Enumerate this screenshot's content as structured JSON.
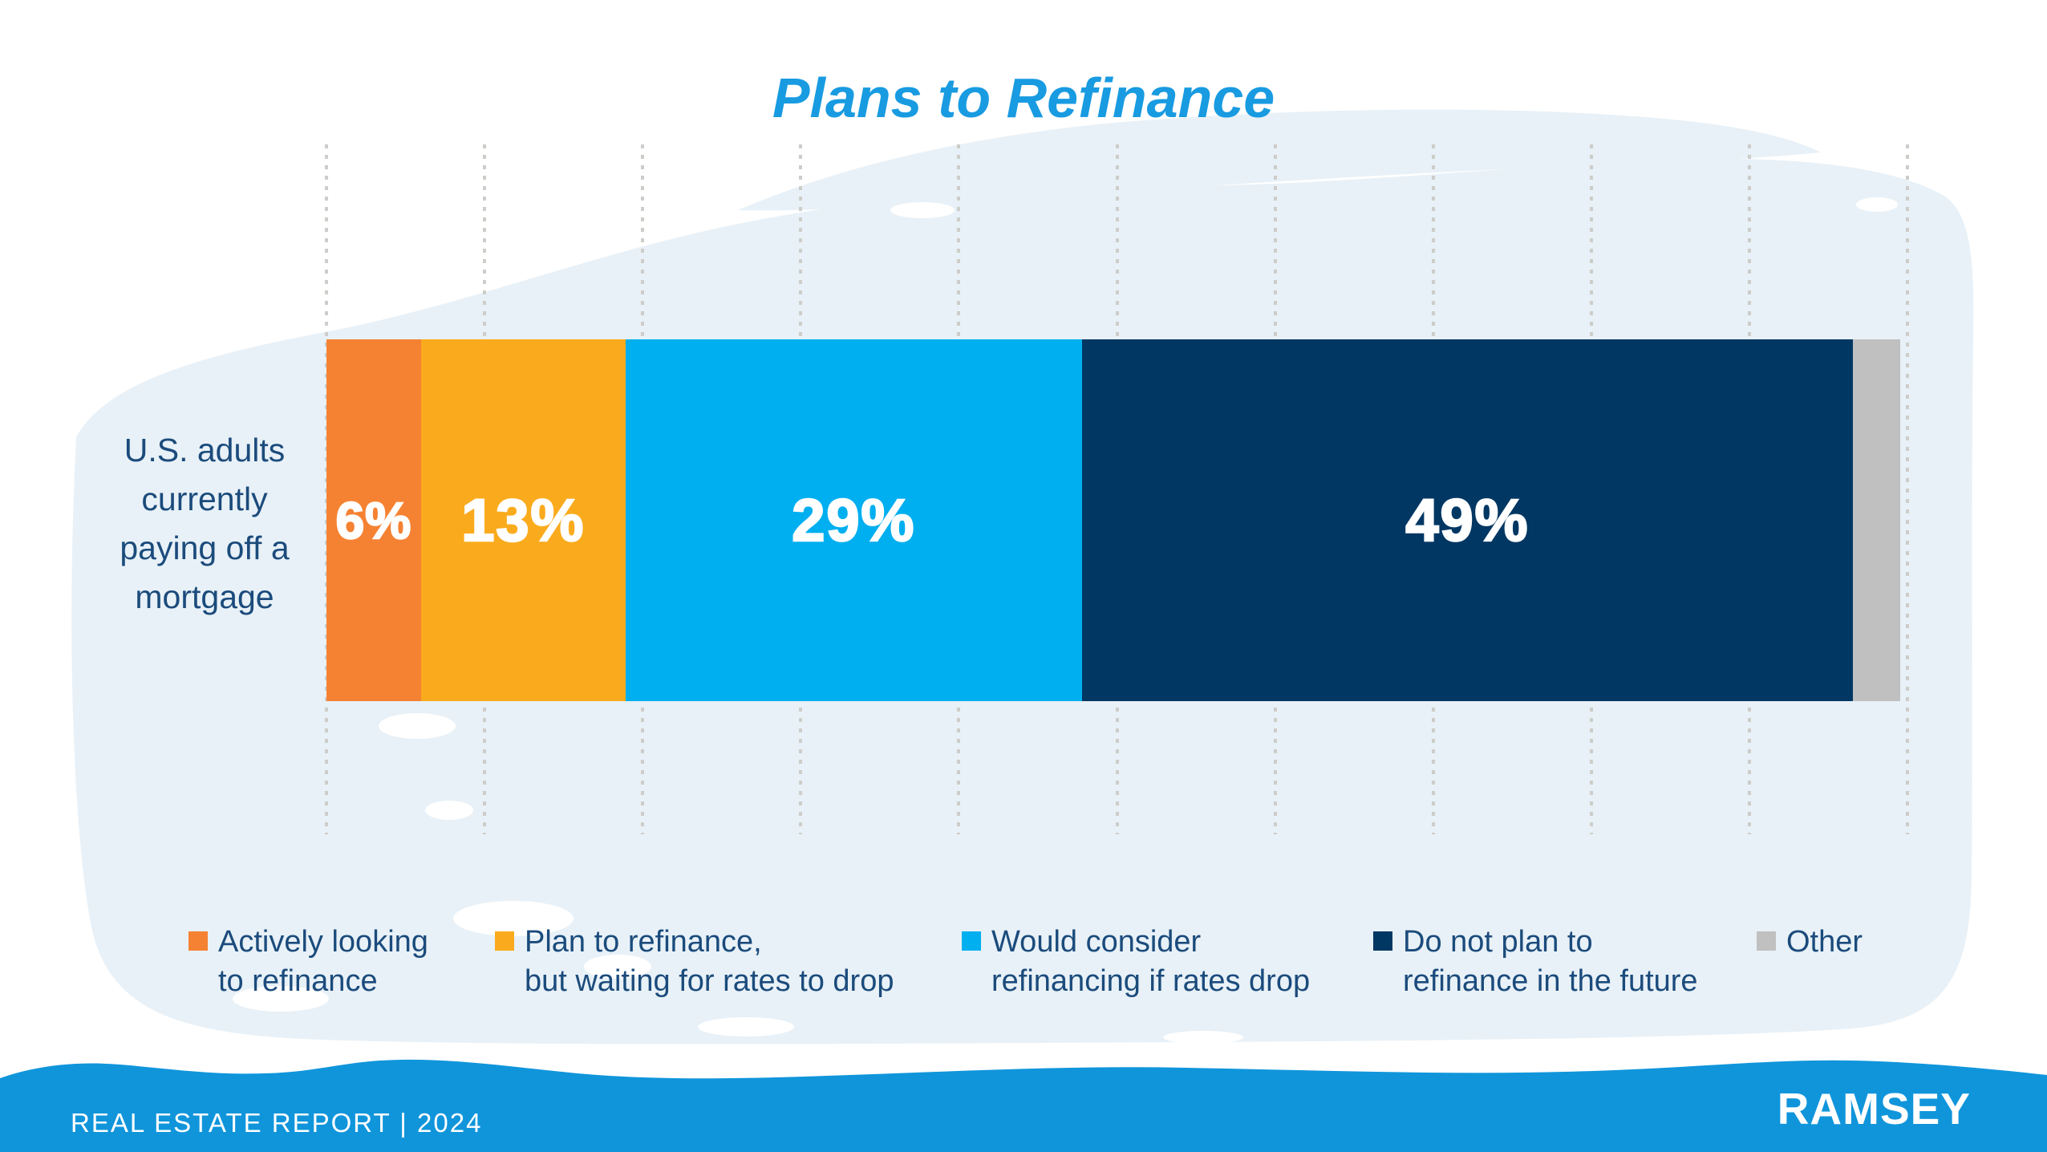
{
  "title": "Plans to Refinance",
  "chart_data": {
    "type": "bar",
    "variant": "horizontal-stacked-100pct",
    "title": "Plans to Refinance",
    "categories": [
      "U.S. adults currently paying off a mortgage"
    ],
    "category_label_lines": "U.S. adults\ncurrently\npaying off a\nmortgage",
    "series": [
      {
        "name": "Actively looking to refinance",
        "legend_label": "Actively looking\nto refinance",
        "value": 6,
        "data_label": "6%",
        "color": "#F58232"
      },
      {
        "name": "Plan to refinance, but waiting for rates to drop",
        "legend_label": "Plan to refinance,\nbut waiting for rates to drop",
        "value": 13,
        "data_label": "13%",
        "color": "#FAAB1D"
      },
      {
        "name": "Would consider refinancing if rates drop",
        "legend_label": "Would consider\nrefinancing if rates drop",
        "value": 29,
        "data_label": "29%",
        "color": "#00AFF0"
      },
      {
        "name": "Do not plan to refinance in the future",
        "legend_label": "Do not plan to\nrefinance in the future",
        "value": 49,
        "data_label": "49%",
        "color": "#003763"
      },
      {
        "name": "Other",
        "legend_label": "Other",
        "value": 3,
        "data_label": "",
        "color": "#C0C0C0"
      }
    ],
    "xlim": [
      0,
      100
    ],
    "gridline_step_pct": 10,
    "grid": "vertical-dotted",
    "legend_position": "bottom",
    "bar_value_labels_visible": [
      "6%",
      "13%",
      "29%",
      "49%"
    ]
  },
  "footer": {
    "report_label": "REAL ESTATE REPORT | 2024",
    "brand_logo": "RAMSEY"
  },
  "style": {
    "title_color": "#189BE1",
    "text_color": "#1B4B7C",
    "bar_label_color": "#FFFFFF",
    "background_wash_color": "#E8F1F7",
    "gridline_color": "#CDCDC9",
    "footer_band_color": "#1095DB",
    "footer_text_color": "#FFFFFF"
  }
}
